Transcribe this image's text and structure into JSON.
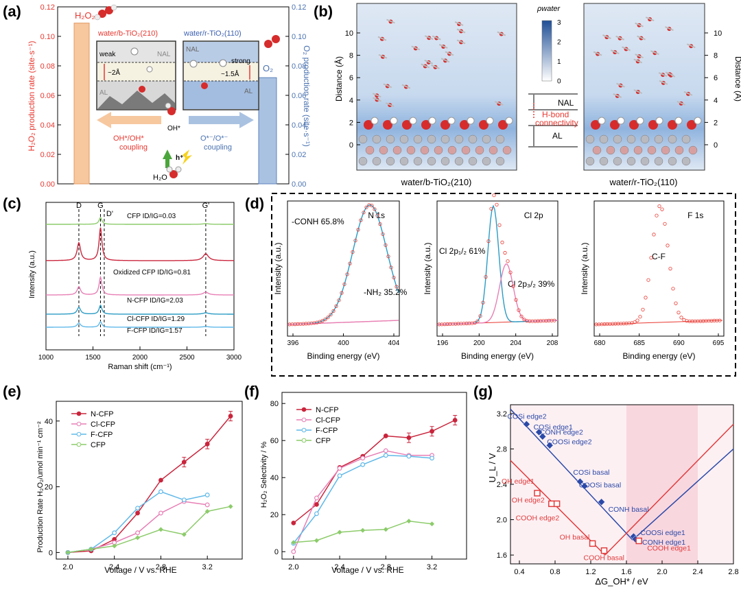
{
  "panel_labels": [
    "(a)",
    "(b)",
    "(c)",
    "(d)",
    "(e)",
    "(f)",
    "(g)"
  ],
  "colors": {
    "red": "#e8372f",
    "blue": "#4a72b0",
    "orange": "#f7c79e",
    "lightblue": "#aac2e2",
    "nred": "#c9253c",
    "pink": "#e77fb5",
    "cyan": "#5fb8e8",
    "green": "#8ccb6a",
    "gblue": "#2b49a8",
    "gred": "#e03c3c"
  },
  "panel_a": {
    "h2o2_label": "H₂O₂",
    "o2_label": "O₂",
    "left_box_title": "water/b-TiO₂(210)",
    "right_box_title": "water/r-TiO₂(110)",
    "weak": "weak",
    "strong": "strong",
    "d_left": "~2Å",
    "d_right": "~1.5Å",
    "nal": "NAL",
    "al": "AL",
    "oh_label": "OH*",
    "h_label": "h⁺",
    "h2o_label": "H₂O",
    "arrow_left": "OH*/OH*",
    "arrow_left2": "coupling",
    "arrow_right": "O*⁻/O*⁻",
    "arrow_right2": "coupling"
  },
  "panel_b": {
    "rho_label": "ρwater",
    "scale_ticks": [
      "3",
      "2",
      "1",
      "0"
    ],
    "yaxis_label": "Distance (Å)",
    "nal": "NAL",
    "hbond1": "H-bond",
    "hbond2": "connectivity",
    "al": "AL",
    "caption_left": "water/b-TiO₂(210)",
    "caption_right": "water/r-TiO₂(110)"
  },
  "panel_c": {
    "peaks": [
      "D",
      "G",
      "D'",
      "G'"
    ],
    "spectra": [
      {
        "name": "CFP",
        "ratio": "ID/IG=0.03",
        "color": "#8ccb6a"
      },
      {
        "name": "Oxidized CFP",
        "ratio": "ID/IG=0.81",
        "color": "#c9253c"
      },
      {
        "name": "N-CFP",
        "ratio": "ID/IG=2.03",
        "color": "#e77fb5"
      },
      {
        "name": "Cl-CFP",
        "ratio": "ID/IG=1.29",
        "color": "#2a9bc4"
      },
      {
        "name": "F-CFP",
        "ratio": "ID/IG=1.57",
        "color": "#5fb8e8"
      }
    ]
  },
  "panel_d": {
    "n1s": {
      "title": "N 1s",
      "peak1": "-CONH 65.8%",
      "peak2": "-NH₂ 35.2%",
      "xticks": [
        "396",
        "400",
        "404"
      ]
    },
    "cl2p": {
      "title": "Cl 2p",
      "peak1": "Cl 2p₁/₂ 61%",
      "peak2": "Cl 2p₃/₂ 39%",
      "xticks": [
        "196",
        "200",
        "204",
        "208"
      ]
    },
    "f1s": {
      "title": "F 1s",
      "peak1": "C-F",
      "xticks": [
        "680",
        "685",
        "690",
        "695"
      ]
    },
    "xlabel": "Binding energy (eV)",
    "ylabel": "Intensity (a.u.)"
  },
  "chart_data": [
    {
      "type": "bar",
      "title": "(a)",
      "categories": [
        "H2O2 (water/b-TiO2(210))",
        "O2 (water/r-TiO2(110))"
      ],
      "values": [
        0.109,
        0.072
      ],
      "ylabel": "H₂O₂ production rate (site·s⁻¹)",
      "y2label": "O₂ production rate (site·s⁻¹)",
      "ylim": [
        0,
        0.12
      ],
      "yticks": [
        "0.00",
        "0.02",
        "0.04",
        "0.06",
        "0.08",
        "0.10",
        "0.12"
      ]
    },
    {
      "type": "line",
      "title": "(c)",
      "xlabel": "Raman shift  (cm⁻¹)",
      "ylabel": "Intensity (a.u.)",
      "xlim": [
        1000,
        3000
      ],
      "xticks": [
        "1000",
        "1500",
        "2000",
        "2500",
        "3000"
      ],
      "peak_positions": [
        1350,
        1580,
        1620,
        2700
      ]
    },
    {
      "type": "line",
      "title": "(e)",
      "xlabel": "Voltage / V vs. RHE",
      "ylabel": "Production Rate H₂O₂/umol min⁻¹ cm⁻²",
      "xlim": [
        1.9,
        3.5
      ],
      "ylim": [
        -2,
        46
      ],
      "xticks": [
        "2.0",
        "2.4",
        "2.8",
        "3.2"
      ],
      "yticks": [
        "0",
        "20",
        "40"
      ],
      "series": [
        {
          "name": "N-CFP",
          "color": "#c9253c",
          "x": [
            2.0,
            2.2,
            2.4,
            2.6,
            2.8,
            3.0,
            3.2,
            3.4
          ],
          "y": [
            0,
            0.5,
            4,
            12,
            22,
            27.5,
            33,
            41.5
          ]
        },
        {
          "name": "Cl-CFP",
          "color": "#e77fb5",
          "x": [
            2.0,
            2.2,
            2.4,
            2.6,
            2.8,
            3.0,
            3.2
          ],
          "y": [
            0,
            1,
            3,
            6,
            12,
            15.5,
            14.5
          ]
        },
        {
          "name": "F-CFP",
          "color": "#5fb8e8",
          "x": [
            2.0,
            2.2,
            2.4,
            2.6,
            2.8,
            3.0,
            3.2
          ],
          "y": [
            0,
            1,
            6,
            13.5,
            18.5,
            16,
            17.5
          ]
        },
        {
          "name": "CFP",
          "color": "#8ccb6a",
          "x": [
            2.0,
            2.2,
            2.4,
            2.6,
            2.8,
            3.0,
            3.2,
            3.4
          ],
          "y": [
            0,
            1,
            2,
            4.5,
            7,
            5.5,
            12.5,
            14
          ]
        }
      ]
    },
    {
      "type": "line",
      "title": "(f)",
      "xlabel": "Voltage / V vs. RHE",
      "ylabel": "H₂O₂ Selectivity / %",
      "xlim": [
        1.9,
        3.5
      ],
      "ylim": [
        -4,
        86
      ],
      "xticks": [
        "2.0",
        "2.4",
        "2.8",
        "3.2"
      ],
      "yticks": [
        "0",
        "20",
        "40",
        "60",
        "80"
      ],
      "series": [
        {
          "name": "N-CFP",
          "color": "#c9253c",
          "x": [
            2.0,
            2.2,
            2.4,
            2.6,
            2.8,
            3.0,
            3.2,
            3.4
          ],
          "y": [
            15.5,
            25.5,
            45.5,
            51.5,
            62.5,
            61.5,
            65,
            71
          ]
        },
        {
          "name": "Cl-CFP",
          "color": "#e77fb5",
          "x": [
            2.0,
            2.2,
            2.4,
            2.6,
            2.8,
            3.0,
            3.2
          ],
          "y": [
            0,
            29,
            45,
            50.5,
            54.5,
            52,
            52
          ]
        },
        {
          "name": "F-CFP",
          "color": "#5fb8e8",
          "x": [
            2.0,
            2.2,
            2.4,
            2.6,
            2.8,
            3.0,
            3.2
          ],
          "y": [
            4.5,
            20.5,
            41,
            47,
            52,
            51.5,
            50.5
          ]
        },
        {
          "name": "CFP",
          "color": "#8ccb6a",
          "x": [
            2.0,
            2.2,
            2.4,
            2.6,
            2.8,
            3.0,
            3.2
          ],
          "y": [
            5,
            6,
            10.5,
            11.5,
            12,
            16.5,
            15
          ]
        }
      ]
    },
    {
      "type": "scatter",
      "title": "(g)",
      "xlabel": "ΔG_OH* / eV",
      "ylabel": "U_L / V",
      "xlim": [
        0.3,
        2.8
      ],
      "ylim": [
        1.5,
        3.3
      ],
      "xticks": [
        "0.4",
        "0.8",
        "1.2",
        "1.6",
        "2.0",
        "2.4",
        "2.8"
      ],
      "yticks": [
        "1.6",
        "2.0",
        "2.4",
        "2.8",
        "3.2"
      ],
      "shaded_x": [
        1.6,
        2.4
      ],
      "series": [
        {
          "name": "blue",
          "color": "#2b49a8",
          "points": [
            {
              "x": 0.48,
              "y": 3.08,
              "label": "COSi edge2"
            },
            {
              "x": 0.62,
              "y": 2.99,
              "label": "COSi edge1"
            },
            {
              "x": 0.66,
              "y": 2.94,
              "label": "CONH edge2"
            },
            {
              "x": 0.74,
              "y": 2.84,
              "label": "COOSi edge2"
            },
            {
              "x": 1.08,
              "y": 2.43,
              "label": "COSi basal"
            },
            {
              "x": 1.13,
              "y": 2.38,
              "label": "COOSi basal"
            },
            {
              "x": 1.32,
              "y": 2.2,
              "label": "CONH basal"
            },
            {
              "x": 1.68,
              "y": 1.81,
              "label": "COOSi edge1"
            },
            {
              "x": 1.7,
              "y": 1.78,
              "label": "CONH edge1"
            }
          ]
        },
        {
          "name": "red",
          "color": "#e03c3c",
          "points": [
            {
              "x": 0.6,
              "y": 2.3,
              "label": "OH edge1"
            },
            {
              "x": 0.76,
              "y": 2.18,
              "label": "OH edge2"
            },
            {
              "x": 0.82,
              "y": 2.18,
              "label": "COOH edge2"
            },
            {
              "x": 1.22,
              "y": 1.73,
              "label": "OH basal"
            },
            {
              "x": 1.35,
              "y": 1.65,
              "label": "COOH basal"
            },
            {
              "x": 1.74,
              "y": 1.76,
              "label": "COOH edge1"
            }
          ]
        }
      ],
      "label_positions": [
        "above-left",
        "right"
      ]
    }
  ]
}
